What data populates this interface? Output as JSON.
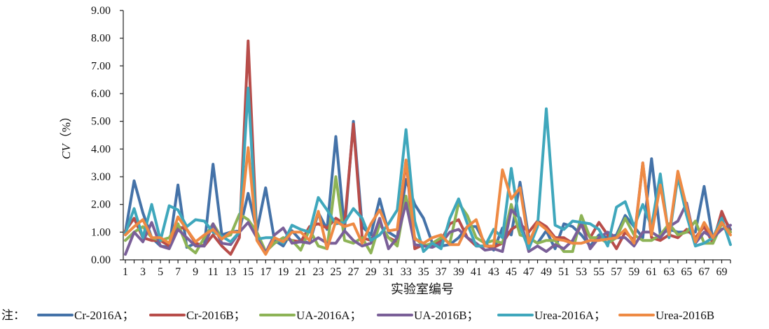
{
  "chart_data": {
    "type": "line",
    "xlabel": "实验室编号",
    "ylabel_italic": "CV",
    "ylabel_rest": "（%）",
    "ylim": [
      0,
      9
    ],
    "yticks": [
      "0.00",
      "1.00",
      "2.00",
      "3.00",
      "4.00",
      "5.00",
      "6.00",
      "7.00",
      "8.00",
      "9.00"
    ],
    "xlim": [
      1,
      70
    ],
    "xticks": [
      1,
      3,
      5,
      7,
      9,
      11,
      13,
      15,
      17,
      19,
      21,
      23,
      25,
      27,
      29,
      31,
      33,
      35,
      37,
      39,
      41,
      43,
      45,
      47,
      49,
      51,
      53,
      55,
      57,
      59,
      61,
      63,
      65,
      67,
      69
    ],
    "legend_prefix": "注：",
    "legend_position": "bottom",
    "grid": false,
    "series": [
      {
        "name": "Cr-2016A；",
        "color": "#4472a8",
        "values": [
          1.0,
          2.85,
          1.7,
          0.8,
          0.5,
          0.45,
          2.7,
          0.45,
          0.6,
          0.5,
          3.45,
          0.9,
          1.0,
          1.05,
          2.4,
          1.05,
          2.6,
          0.7,
          0.5,
          1.05,
          0.7,
          0.6,
          1.7,
          1.1,
          4.45,
          1.1,
          5.0,
          1.2,
          0.9,
          2.2,
          1.0,
          0.8,
          2.9,
          2.0,
          1.5,
          0.6,
          0.5,
          0.55,
          0.8,
          1.2,
          1.2,
          0.6,
          0.35,
          1.15,
          0.9,
          2.8,
          0.8,
          0.6,
          1.05,
          0.4,
          1.3,
          1.2,
          0.9,
          0.5,
          0.9,
          0.8,
          0.9,
          1.6,
          1.2,
          0.8,
          3.65,
          0.9,
          1.1,
          1.0,
          1.0,
          1.0,
          2.65,
          0.7,
          1.65,
          1.1
        ]
      },
      {
        "name": "Cr-2016B；",
        "color": "#b84d4a",
        "values": [
          1.05,
          1.5,
          0.8,
          0.7,
          0.7,
          0.5,
          1.2,
          1.1,
          0.6,
          0.5,
          0.9,
          0.5,
          0.2,
          0.8,
          7.9,
          0.8,
          0.3,
          0.6,
          0.8,
          0.7,
          0.65,
          1.2,
          1.3,
          1.15,
          1.5,
          1.3,
          4.9,
          0.8,
          0.7,
          1.3,
          0.8,
          0.65,
          3.6,
          0.4,
          0.55,
          0.5,
          0.7,
          1.3,
          1.45,
          0.8,
          0.5,
          0.5,
          0.45,
          0.6,
          1.1,
          1.3,
          1.0,
          1.4,
          1.2,
          0.8,
          0.8,
          0.6,
          1.3,
          0.8,
          1.35,
          0.9,
          0.4,
          1.0,
          0.7,
          3.5,
          0.8,
          0.7,
          0.9,
          0.8,
          1.1,
          0.8,
          1.2,
          0.6,
          1.75,
          1.0
        ]
      },
      {
        "name": "UA-2016A；",
        "color": "#8db356",
        "values": [
          0.7,
          1.0,
          1.2,
          0.8,
          0.7,
          0.8,
          1.3,
          0.5,
          0.25,
          0.8,
          1.3,
          0.8,
          0.9,
          1.65,
          1.45,
          1.0,
          0.3,
          0.6,
          0.8,
          0.7,
          0.35,
          1.1,
          0.5,
          0.4,
          3.0,
          0.7,
          0.6,
          0.8,
          0.25,
          1.3,
          0.8,
          0.5,
          2.3,
          0.8,
          0.5,
          0.6,
          0.8,
          0.6,
          2.05,
          1.6,
          0.8,
          0.6,
          0.7,
          0.6,
          2.0,
          0.9,
          0.8,
          0.6,
          0.7,
          0.7,
          0.3,
          0.3,
          1.6,
          0.8,
          0.8,
          0.6,
          0.8,
          1.5,
          0.9,
          0.7,
          0.7,
          0.9,
          1.3,
          0.9,
          1.0,
          1.4,
          0.6,
          0.6,
          1.3,
          1.0
        ]
      },
      {
        "name": "UA-2016B；",
        "color": "#7a5f98",
        "values": [
          0.2,
          1.0,
          0.65,
          1.35,
          0.5,
          0.4,
          1.1,
          0.8,
          0.5,
          0.5,
          1.3,
          0.6,
          0.55,
          1.0,
          1.35,
          0.8,
          0.25,
          0.9,
          1.15,
          0.6,
          0.65,
          0.6,
          0.8,
          0.6,
          0.6,
          1.05,
          0.7,
          0.5,
          0.6,
          1.5,
          0.4,
          0.8,
          2.05,
          0.55,
          0.5,
          0.45,
          0.6,
          1.0,
          1.1,
          0.8,
          0.6,
          0.35,
          0.4,
          0.3,
          1.8,
          1.5,
          0.3,
          0.5,
          0.3,
          0.55,
          0.4,
          0.7,
          1.3,
          0.4,
          0.8,
          1.0,
          0.8,
          0.8,
          0.5,
          1.0,
          1.0,
          0.8,
          1.2,
          1.4,
          2.05,
          0.6,
          1.0,
          0.8,
          1.1,
          1.25
        ]
      },
      {
        "name": "Urea-2016A；",
        "color": "#3fa7bc",
        "values": [
          0.95,
          1.85,
          0.8,
          2.0,
          0.7,
          1.95,
          1.8,
          1.2,
          1.45,
          1.4,
          1.0,
          0.85,
          0.65,
          1.0,
          6.2,
          0.75,
          0.8,
          0.8,
          0.6,
          1.25,
          1.1,
          1.0,
          2.25,
          1.8,
          1.3,
          1.35,
          1.85,
          1.5,
          0.7,
          0.9,
          1.3,
          1.8,
          4.7,
          1.4,
          0.3,
          0.6,
          0.4,
          1.5,
          2.2,
          1.3,
          0.5,
          0.5,
          1.1,
          0.8,
          3.3,
          1.2,
          0.4,
          1.2,
          5.45,
          1.25,
          1.1,
          1.4,
          1.35,
          1.3,
          1.1,
          0.5,
          1.9,
          2.1,
          1.2,
          2.0,
          1.2,
          3.1,
          0.8,
          3.0,
          1.6,
          0.5,
          0.6,
          0.8,
          1.5,
          0.55
        ]
      },
      {
        "name": "Urea-2016B",
        "color": "#ee8a44",
        "values": [
          0.9,
          1.2,
          1.45,
          0.8,
          0.8,
          0.6,
          1.55,
          1.1,
          0.65,
          0.9,
          1.1,
          0.75,
          1.0,
          1.0,
          4.05,
          0.7,
          0.2,
          0.8,
          0.65,
          1.0,
          1.0,
          0.7,
          1.75,
          0.4,
          1.4,
          1.2,
          1.3,
          0.6,
          1.3,
          1.8,
          1.05,
          1.1,
          3.6,
          0.75,
          0.6,
          0.8,
          0.9,
          0.55,
          0.55,
          1.2,
          1.45,
          0.5,
          0.5,
          3.25,
          2.2,
          2.6,
          0.6,
          1.35,
          1.1,
          0.75,
          0.7,
          0.6,
          0.6,
          0.7,
          0.7,
          0.75,
          0.8,
          1.1,
          0.6,
          3.5,
          0.9,
          2.7,
          0.9,
          3.2,
          1.9,
          0.65,
          1.35,
          0.8,
          1.35,
          0.9
        ]
      }
    ]
  }
}
